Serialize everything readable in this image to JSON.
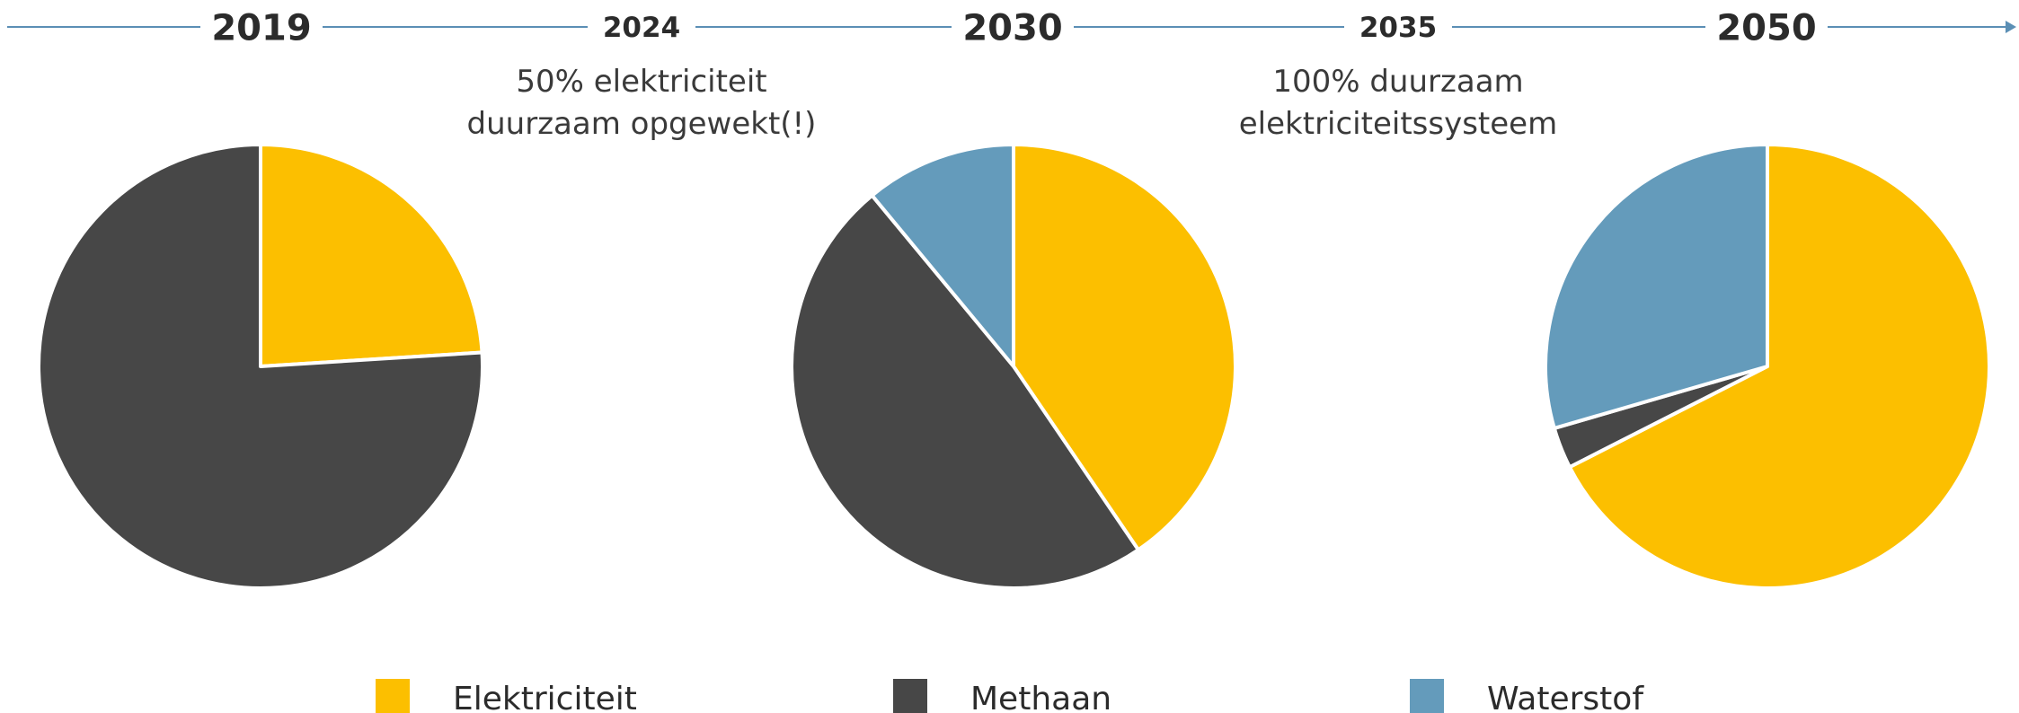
{
  "timeline": {
    "years": [
      {
        "label": "2019",
        "major": true
      },
      {
        "label": "2024",
        "major": false
      },
      {
        "label": "2030",
        "major": true
      },
      {
        "label": "2035",
        "major": false
      },
      {
        "label": "2050",
        "major": true
      }
    ],
    "line_color": "#5b8fb5",
    "annotations": [
      {
        "after_year": "2024",
        "lines": [
          "50% elektriciteit",
          "duurzaam opgewekt(!)"
        ]
      },
      {
        "after_year": "2035",
        "lines": [
          "100% duurzaam",
          "elektriciteitssysteem"
        ]
      }
    ]
  },
  "chart_data": [
    {
      "type": "pie",
      "year": "2019",
      "categories": [
        "Elektriciteit",
        "Methaan",
        "Waterstof"
      ],
      "values": [
        24,
        76,
        0
      ]
    },
    {
      "type": "pie",
      "year": "2030",
      "categories": [
        "Elektriciteit",
        "Methaan",
        "Waterstof"
      ],
      "values": [
        40.5,
        48.5,
        11
      ]
    },
    {
      "type": "pie",
      "year": "2050",
      "categories": [
        "Elektriciteit",
        "Methaan",
        "Waterstof"
      ],
      "values": [
        67.5,
        3,
        29.5
      ]
    }
  ],
  "legend": {
    "position": "bottom",
    "items": [
      {
        "label": "Elektriciteit",
        "color": "#fcbf00"
      },
      {
        "label": "Methaan",
        "color": "#474747"
      },
      {
        "label": "Waterstof",
        "color": "#649bbb"
      }
    ]
  }
}
